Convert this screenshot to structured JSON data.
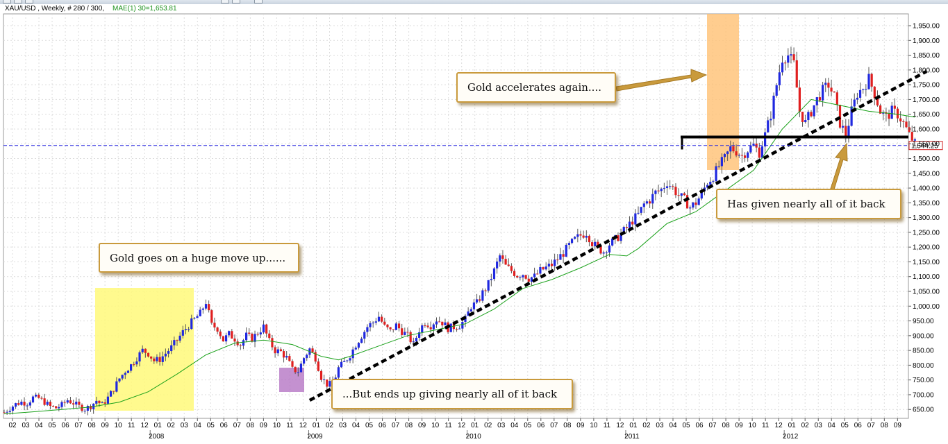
{
  "header": {
    "symbol_text": "XAU/USD , Weekly, # 280 / 300,",
    "indicator_text": "MAE(1) 30=1,653.81"
  },
  "colors": {
    "up_candle": "#1f28e0",
    "down_candle": "#e01f1f",
    "moving_average": "#1aa11a",
    "trendline": "#000000",
    "price_line": "#2a2ae0",
    "highlight_2008": "#fff97a",
    "highlight_2011": "#ffc073",
    "highlight_2008_low": "#b06cc0",
    "callout_border": "#c99a3c"
  },
  "annotations": {
    "huge_move": "Gold goes on a huge move up......",
    "ends_up": "...But ends up giving nearly all of it back",
    "accelerates": "Gold accelerates again....",
    "given_back": "Has given nearly all of it back"
  },
  "chart_data": {
    "type": "candlestick",
    "instrument": "XAU/USD",
    "timeframe": "Weekly",
    "ylim": [
      620,
      1990
    ],
    "yticks": [
      650,
      700,
      750,
      800,
      850,
      900,
      950,
      1000,
      1050,
      1100,
      1150,
      1200,
      1250,
      1300,
      1350,
      1400,
      1450,
      1500,
      1550,
      1600,
      1650,
      1700,
      1750,
      1800,
      1850,
      1900,
      1950
    ],
    "last_price": 1544.25,
    "last_price_label": "1,544.25",
    "horizontal_level": 1573,
    "months": [
      "02",
      "03",
      "04",
      "05",
      "06",
      "07",
      "08",
      "09",
      "10",
      "11",
      "12",
      "01",
      "02",
      "03",
      "04",
      "05",
      "06",
      "07",
      "08",
      "09",
      "10",
      "11",
      "12",
      "01",
      "02",
      "03",
      "04",
      "05",
      "06",
      "07",
      "08",
      "09",
      "10",
      "11",
      "12",
      "01",
      "02",
      "03",
      "04",
      "05",
      "06",
      "07",
      "08",
      "09",
      "10",
      "11",
      "12",
      "01",
      "02",
      "03",
      "04",
      "05",
      "06",
      "07",
      "08",
      "09",
      "10",
      "11",
      "12",
      "01",
      "02",
      "03",
      "04",
      "05",
      "06",
      "07",
      "08",
      "09"
    ],
    "years": [
      "2008",
      "2009",
      "2010",
      "2011",
      "2012"
    ],
    "weekly_closes": [
      [
        0,
        640
      ],
      [
        2,
        655
      ],
      [
        4,
        668
      ],
      [
        6,
        675
      ],
      [
        8,
        672
      ],
      [
        10,
        690
      ],
      [
        12,
        688
      ],
      [
        14,
        675
      ],
      [
        16,
        660
      ],
      [
        18,
        655
      ],
      [
        20,
        665
      ],
      [
        22,
        682
      ],
      [
        24,
        672
      ],
      [
        26,
        660
      ],
      [
        28,
        652
      ],
      [
        30,
        662
      ],
      [
        32,
        680
      ],
      [
        34,
        665
      ],
      [
        36,
        690
      ],
      [
        38,
        720
      ],
      [
        40,
        755
      ],
      [
        42,
        780
      ],
      [
        44,
        800
      ],
      [
        46,
        825
      ],
      [
        48,
        850
      ],
      [
        50,
        840
      ],
      [
        52,
        815
      ],
      [
        54,
        820
      ],
      [
        56,
        840
      ],
      [
        58,
        860
      ],
      [
        60,
        885
      ],
      [
        62,
        912
      ],
      [
        64,
        935
      ],
      [
        66,
        955
      ],
      [
        68,
        975
      ],
      [
        70,
        1015
      ],
      [
        72,
        935
      ],
      [
        74,
        925
      ],
      [
        76,
        885
      ],
      [
        78,
        905
      ],
      [
        80,
        890
      ],
      [
        82,
        870
      ],
      [
        84,
        900
      ],
      [
        86,
        890
      ],
      [
        88,
        910
      ],
      [
        90,
        930
      ],
      [
        92,
        880
      ],
      [
        94,
        850
      ],
      [
        96,
        845
      ],
      [
        98,
        825
      ],
      [
        100,
        785
      ],
      [
        102,
        780
      ],
      [
        104,
        825
      ],
      [
        106,
        855
      ],
      [
        108,
        825
      ],
      [
        110,
        760
      ],
      [
        112,
        735
      ],
      [
        114,
        735
      ],
      [
        116,
        790
      ],
      [
        118,
        810
      ],
      [
        120,
        835
      ],
      [
        122,
        870
      ],
      [
        124,
        900
      ],
      [
        126,
        930
      ],
      [
        128,
        945
      ],
      [
        130,
        965
      ],
      [
        132,
        930
      ],
      [
        134,
        915
      ],
      [
        136,
        935
      ],
      [
        138,
        915
      ],
      [
        140,
        900
      ],
      [
        142,
        870
      ],
      [
        144,
        920
      ],
      [
        146,
        945
      ],
      [
        148,
        935
      ],
      [
        150,
        955
      ],
      [
        152,
        945
      ],
      [
        154,
        925
      ],
      [
        156,
        930
      ],
      [
        158,
        935
      ],
      [
        160,
        955
      ],
      [
        162,
        1000
      ],
      [
        164,
        1010
      ],
      [
        166,
        1045
      ],
      [
        168,
        1075
      ],
      [
        170,
        1120
      ],
      [
        172,
        1170
      ],
      [
        174,
        1135
      ],
      [
        176,
        1120
      ],
      [
        178,
        1105
      ],
      [
        180,
        1110
      ],
      [
        182,
        1095
      ],
      [
        184,
        1100
      ],
      [
        186,
        1120
      ],
      [
        188,
        1130
      ],
      [
        190,
        1140
      ],
      [
        192,
        1160
      ],
      [
        194,
        1180
      ],
      [
        196,
        1205
      ],
      [
        198,
        1225
      ],
      [
        200,
        1240
      ],
      [
        202,
        1250
      ],
      [
        204,
        1215
      ],
      [
        206,
        1195
      ],
      [
        208,
        1185
      ],
      [
        210,
        1210
      ],
      [
        212,
        1225
      ],
      [
        214,
        1245
      ],
      [
        216,
        1265
      ],
      [
        218,
        1290
      ],
      [
        220,
        1310
      ],
      [
        222,
        1345
      ],
      [
        224,
        1360
      ],
      [
        226,
        1385
      ],
      [
        228,
        1395
      ],
      [
        230,
        1420
      ],
      [
        232,
        1400
      ],
      [
        234,
        1375
      ],
      [
        236,
        1360
      ],
      [
        238,
        1335
      ],
      [
        240,
        1350
      ],
      [
        242,
        1380
      ],
      [
        244,
        1420
      ],
      [
        246,
        1440
      ],
      [
        248,
        1475
      ],
      [
        250,
        1500
      ],
      [
        252,
        1535
      ],
      [
        254,
        1525
      ],
      [
        256,
        1510
      ],
      [
        258,
        1530
      ],
      [
        260,
        1545
      ],
      [
        262,
        1520
      ],
      [
        264,
        1580
      ],
      [
        266,
        1650
      ],
      [
        268,
        1750
      ],
      [
        270,
        1840
      ],
      [
        272,
        1850
      ],
      [
        274,
        1820
      ],
      [
        276,
        1660
      ],
      [
        278,
        1620
      ],
      [
        280,
        1660
      ],
      [
        282,
        1700
      ],
      [
        284,
        1730
      ],
      [
        286,
        1750
      ],
      [
        288,
        1710
      ],
      [
        290,
        1620
      ],
      [
        292,
        1580
      ],
      [
        294,
        1660
      ],
      [
        296,
        1720
      ],
      [
        298,
        1740
      ],
      [
        300,
        1770
      ],
      [
        302,
        1720
      ],
      [
        304,
        1660
      ],
      [
        306,
        1640
      ],
      [
        308,
        1660
      ],
      [
        310,
        1650
      ],
      [
        312,
        1620
      ],
      [
        314,
        1580
      ],
      [
        316,
        1550
      ]
    ],
    "moving_average": [
      [
        0,
        635
      ],
      [
        10,
        642
      ],
      [
        20,
        650
      ],
      [
        30,
        658
      ],
      [
        40,
        675
      ],
      [
        50,
        710
      ],
      [
        60,
        770
      ],
      [
        70,
        835
      ],
      [
        80,
        875
      ],
      [
        90,
        885
      ],
      [
        100,
        870
      ],
      [
        110,
        830
      ],
      [
        116,
        818
      ],
      [
        120,
        830
      ],
      [
        130,
        865
      ],
      [
        140,
        900
      ],
      [
        150,
        920
      ],
      [
        160,
        940
      ],
      [
        170,
        990
      ],
      [
        180,
        1060
      ],
      [
        190,
        1090
      ],
      [
        200,
        1130
      ],
      [
        210,
        1175
      ],
      [
        216,
        1170
      ],
      [
        220,
        1195
      ],
      [
        230,
        1280
      ],
      [
        240,
        1320
      ],
      [
        250,
        1390
      ],
      [
        260,
        1460
      ],
      [
        270,
        1600
      ],
      [
        280,
        1700
      ],
      [
        290,
        1680
      ],
      [
        300,
        1660
      ],
      [
        310,
        1650
      ],
      [
        316,
        1640
      ]
    ],
    "trendline_weeks": [
      106,
      320
    ],
    "trendline_values": [
      681,
      1795
    ]
  }
}
